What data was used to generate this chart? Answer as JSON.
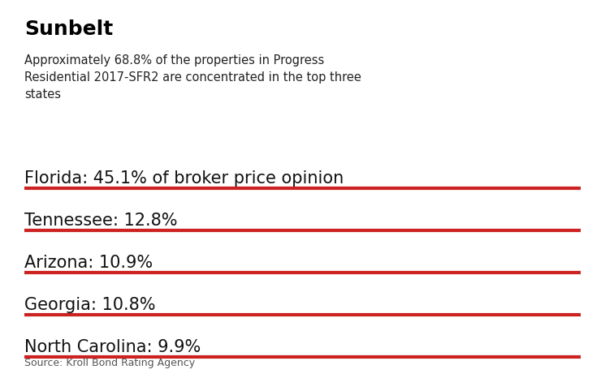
{
  "title": "Sunbelt",
  "subtitle": "Approximately 68.8% of the properties in Progress\nResidential 2017-SFR2 are concentrated in the top three\nstates",
  "rows": [
    "Florida: 45.1% of broker price opinion",
    "Tennessee: 12.8%",
    "Arizona: 10.9%",
    "Georgia: 10.8%",
    "North Carolina: 9.9%"
  ],
  "source": "Source: Kroll Bond Rating Agency",
  "line_color": "#cc2222",
  "background_color": "#ffffff",
  "title_fontsize": 18,
  "subtitle_fontsize": 10.5,
  "row_fontsize": 15,
  "source_fontsize": 9,
  "line_thickness": 3.0
}
